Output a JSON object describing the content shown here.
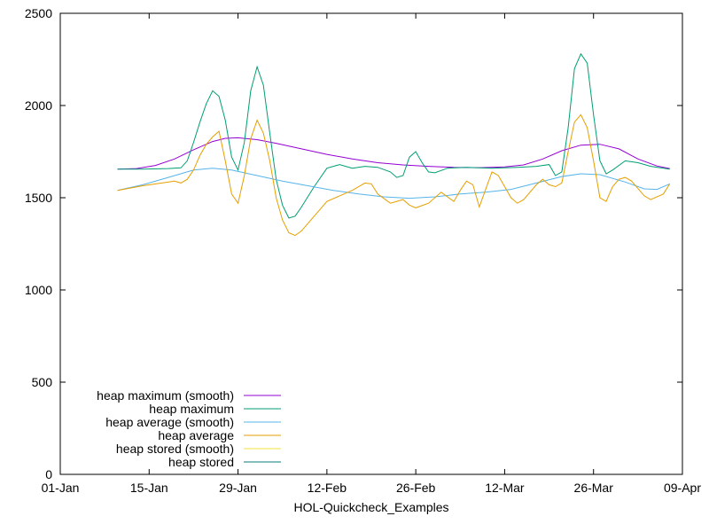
{
  "chart_data": {
    "type": "line",
    "title": "",
    "xlabel": "HOL-Quickcheck_Examples",
    "ylabel": "",
    "x_range": [
      "2021-01-01",
      "2021-04-09"
    ],
    "ylim": [
      0,
      2500
    ],
    "x_ticks": [
      {
        "date": "2021-01-01",
        "label": "01-Jan"
      },
      {
        "date": "2021-01-15",
        "label": "15-Jan"
      },
      {
        "date": "2021-01-29",
        "label": "29-Jan"
      },
      {
        "date": "2021-02-12",
        "label": "12-Feb"
      },
      {
        "date": "2021-02-26",
        "label": "26-Feb"
      },
      {
        "date": "2021-03-12",
        "label": "12-Mar"
      },
      {
        "date": "2021-03-26",
        "label": "26-Mar"
      },
      {
        "date": "2021-04-09",
        "label": "09-Apr"
      }
    ],
    "y_ticks": [
      0,
      500,
      1000,
      1500,
      2000,
      2500
    ],
    "grid": false,
    "legend_position": "bottom-left",
    "series": [
      {
        "name": "heap maximum (smooth)",
        "color": "#9400d3",
        "points": [
          [
            "2021-01-10",
            1655
          ],
          [
            "2021-01-13",
            1658
          ],
          [
            "2021-01-16",
            1675
          ],
          [
            "2021-01-19",
            1710
          ],
          [
            "2021-01-22",
            1760
          ],
          [
            "2021-01-25",
            1805
          ],
          [
            "2021-01-27",
            1822
          ],
          [
            "2021-01-29",
            1825
          ],
          [
            "2021-02-01",
            1815
          ],
          [
            "2021-02-04",
            1795
          ],
          [
            "2021-02-08",
            1765
          ],
          [
            "2021-02-12",
            1735
          ],
          [
            "2021-02-16",
            1710
          ],
          [
            "2021-02-20",
            1690
          ],
          [
            "2021-02-24",
            1678
          ],
          [
            "2021-02-28",
            1670
          ],
          [
            "2021-03-04",
            1665
          ],
          [
            "2021-03-08",
            1663
          ],
          [
            "2021-03-12",
            1667
          ],
          [
            "2021-03-15",
            1678
          ],
          [
            "2021-03-18",
            1710
          ],
          [
            "2021-03-21",
            1755
          ],
          [
            "2021-03-24",
            1785
          ],
          [
            "2021-03-27",
            1790
          ],
          [
            "2021-03-30",
            1765
          ],
          [
            "2021-04-02",
            1710
          ],
          [
            "2021-04-05",
            1672
          ],
          [
            "2021-04-07",
            1658
          ]
        ]
      },
      {
        "name": "heap maximum",
        "color": "#009e73",
        "points": [
          [
            "2021-01-10",
            1655
          ],
          [
            "2021-01-14",
            1655
          ],
          [
            "2021-01-18",
            1658
          ],
          [
            "2021-01-20",
            1662
          ],
          [
            "2021-01-21",
            1700
          ],
          [
            "2021-01-22",
            1800
          ],
          [
            "2021-01-23",
            1910
          ],
          [
            "2021-01-24",
            2010
          ],
          [
            "2021-01-25",
            2080
          ],
          [
            "2021-01-26",
            2050
          ],
          [
            "2021-01-27",
            1920
          ],
          [
            "2021-01-28",
            1720
          ],
          [
            "2021-01-29",
            1650
          ],
          [
            "2021-01-30",
            1800
          ],
          [
            "2021-01-31",
            2080
          ],
          [
            "2021-02-01",
            2210
          ],
          [
            "2021-02-02",
            2110
          ],
          [
            "2021-02-03",
            1850
          ],
          [
            "2021-02-04",
            1600
          ],
          [
            "2021-02-05",
            1460
          ],
          [
            "2021-02-06",
            1390
          ],
          [
            "2021-02-07",
            1400
          ],
          [
            "2021-02-08",
            1450
          ],
          [
            "2021-02-10",
            1560
          ],
          [
            "2021-02-12",
            1660
          ],
          [
            "2021-02-14",
            1680
          ],
          [
            "2021-02-16",
            1660
          ],
          [
            "2021-02-18",
            1670
          ],
          [
            "2021-02-20",
            1665
          ],
          [
            "2021-02-22",
            1640
          ],
          [
            "2021-02-23",
            1610
          ],
          [
            "2021-02-24",
            1620
          ],
          [
            "2021-02-25",
            1720
          ],
          [
            "2021-02-26",
            1750
          ],
          [
            "2021-02-27",
            1690
          ],
          [
            "2021-02-28",
            1640
          ],
          [
            "2021-03-01",
            1635
          ],
          [
            "2021-03-03",
            1660
          ],
          [
            "2021-03-06",
            1665
          ],
          [
            "2021-03-10",
            1660
          ],
          [
            "2021-03-14",
            1665
          ],
          [
            "2021-03-17",
            1670
          ],
          [
            "2021-03-19",
            1680
          ],
          [
            "2021-03-20",
            1620
          ],
          [
            "2021-03-21",
            1640
          ],
          [
            "2021-03-22",
            1880
          ],
          [
            "2021-03-23",
            2200
          ],
          [
            "2021-03-24",
            2280
          ],
          [
            "2021-03-25",
            2230
          ],
          [
            "2021-03-26",
            1950
          ],
          [
            "2021-03-27",
            1700
          ],
          [
            "2021-03-28",
            1630
          ],
          [
            "2021-03-29",
            1650
          ],
          [
            "2021-03-31",
            1700
          ],
          [
            "2021-04-02",
            1690
          ],
          [
            "2021-04-04",
            1670
          ],
          [
            "2021-04-07",
            1655
          ]
        ]
      },
      {
        "name": "heap average (smooth)",
        "color": "#56b4e9",
        "points": [
          [
            "2021-01-10",
            1540
          ],
          [
            "2021-01-14",
            1570
          ],
          [
            "2021-01-18",
            1610
          ],
          [
            "2021-01-22",
            1650
          ],
          [
            "2021-01-25",
            1660
          ],
          [
            "2021-01-28",
            1650
          ],
          [
            "2021-02-01",
            1620
          ],
          [
            "2021-02-05",
            1590
          ],
          [
            "2021-02-09",
            1565
          ],
          [
            "2021-02-13",
            1540
          ],
          [
            "2021-02-17",
            1520
          ],
          [
            "2021-02-21",
            1505
          ],
          [
            "2021-02-25",
            1497
          ],
          [
            "2021-03-01",
            1505
          ],
          [
            "2021-03-05",
            1520
          ],
          [
            "2021-03-09",
            1530
          ],
          [
            "2021-03-13",
            1545
          ],
          [
            "2021-03-17",
            1580
          ],
          [
            "2021-03-21",
            1615
          ],
          [
            "2021-03-24",
            1630
          ],
          [
            "2021-03-27",
            1625
          ],
          [
            "2021-03-31",
            1585
          ],
          [
            "2021-04-03",
            1548
          ],
          [
            "2021-04-05",
            1545
          ],
          [
            "2021-04-07",
            1575
          ]
        ]
      },
      {
        "name": "heap average",
        "color": "#e69f00",
        "points": [
          [
            "2021-01-10",
            1540
          ],
          [
            "2021-01-14",
            1565
          ],
          [
            "2021-01-17",
            1580
          ],
          [
            "2021-01-19",
            1590
          ],
          [
            "2021-01-20",
            1580
          ],
          [
            "2021-01-21",
            1600
          ],
          [
            "2021-01-22",
            1650
          ],
          [
            "2021-01-23",
            1730
          ],
          [
            "2021-01-24",
            1790
          ],
          [
            "2021-01-25",
            1830
          ],
          [
            "2021-01-26",
            1860
          ],
          [
            "2021-01-27",
            1700
          ],
          [
            "2021-01-28",
            1520
          ],
          [
            "2021-01-29",
            1470
          ],
          [
            "2021-01-30",
            1620
          ],
          [
            "2021-01-31",
            1820
          ],
          [
            "2021-02-01",
            1920
          ],
          [
            "2021-02-02",
            1850
          ],
          [
            "2021-02-03",
            1700
          ],
          [
            "2021-02-04",
            1500
          ],
          [
            "2021-02-05",
            1380
          ],
          [
            "2021-02-06",
            1310
          ],
          [
            "2021-02-07",
            1295
          ],
          [
            "2021-02-08",
            1320
          ],
          [
            "2021-02-10",
            1400
          ],
          [
            "2021-02-12",
            1480
          ],
          [
            "2021-02-14",
            1510
          ],
          [
            "2021-02-16",
            1540
          ],
          [
            "2021-02-18",
            1580
          ],
          [
            "2021-02-19",
            1575
          ],
          [
            "2021-02-20",
            1520
          ],
          [
            "2021-02-22",
            1470
          ],
          [
            "2021-02-24",
            1490
          ],
          [
            "2021-02-25",
            1460
          ],
          [
            "2021-02-26",
            1445
          ],
          [
            "2021-02-28",
            1470
          ],
          [
            "2021-03-02",
            1530
          ],
          [
            "2021-03-04",
            1480
          ],
          [
            "2021-03-05",
            1540
          ],
          [
            "2021-03-06",
            1590
          ],
          [
            "2021-03-07",
            1570
          ],
          [
            "2021-03-08",
            1450
          ],
          [
            "2021-03-10",
            1640
          ],
          [
            "2021-03-11",
            1620
          ],
          [
            "2021-03-13",
            1500
          ],
          [
            "2021-03-14",
            1470
          ],
          [
            "2021-03-15",
            1490
          ],
          [
            "2021-03-17",
            1570
          ],
          [
            "2021-03-18",
            1600
          ],
          [
            "2021-03-19",
            1570
          ],
          [
            "2021-03-20",
            1560
          ],
          [
            "2021-03-21",
            1580
          ],
          [
            "2021-03-22",
            1750
          ],
          [
            "2021-03-23",
            1910
          ],
          [
            "2021-03-24",
            1950
          ],
          [
            "2021-03-25",
            1880
          ],
          [
            "2021-03-26",
            1700
          ],
          [
            "2021-03-27",
            1500
          ],
          [
            "2021-03-28",
            1480
          ],
          [
            "2021-03-29",
            1560
          ],
          [
            "2021-03-30",
            1600
          ],
          [
            "2021-03-31",
            1610
          ],
          [
            "2021-04-01",
            1590
          ],
          [
            "2021-04-03",
            1510
          ],
          [
            "2021-04-04",
            1490
          ],
          [
            "2021-04-06",
            1520
          ],
          [
            "2021-04-07",
            1575
          ]
        ]
      },
      {
        "name": "heap stored (smooth)",
        "color": "#f0e442",
        "points": []
      },
      {
        "name": "heap stored",
        "color": "#0b7a7a",
        "points": []
      }
    ]
  }
}
